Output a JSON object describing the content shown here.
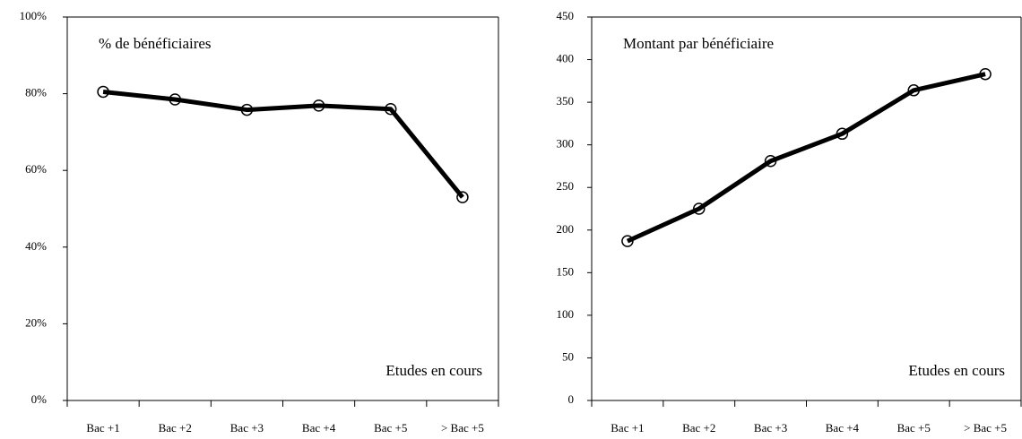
{
  "chart_data": [
    {
      "type": "line",
      "annotations": [
        "% de bénéficiaires",
        "Etudes en cours"
      ],
      "categories": [
        "Bac +1",
        "Bac +2",
        "Bac +3",
        "Bac +4",
        "Bac +5",
        "> Bac +5"
      ],
      "values": [
        80.5,
        78.5,
        75.8,
        76.9,
        76,
        53
      ],
      "color": "#000000",
      "ylim": [
        0,
        100
      ],
      "yticks": [
        {
          "value": 0,
          "label": "0%"
        },
        {
          "value": 20,
          "label": "20%"
        },
        {
          "value": 40,
          "label": "40%"
        },
        {
          "value": 60,
          "label": "60%"
        },
        {
          "value": 80,
          "label": "80%"
        },
        {
          "value": 100,
          "label": "100%"
        }
      ]
    },
    {
      "type": "line",
      "annotations": [
        "Montant par bénéficiaire",
        "Etudes en cours"
      ],
      "categories": [
        "Bac +1",
        "Bac +2",
        "Bac +3",
        "Bac +4",
        "Bac +5",
        "> Bac +5"
      ],
      "values": [
        187,
        225,
        281,
        313,
        364,
        383
      ],
      "color": "#000000",
      "ylim": [
        0,
        450
      ],
      "yticks": [
        0,
        50,
        100,
        150,
        200,
        250,
        300,
        350,
        400,
        450
      ]
    }
  ]
}
